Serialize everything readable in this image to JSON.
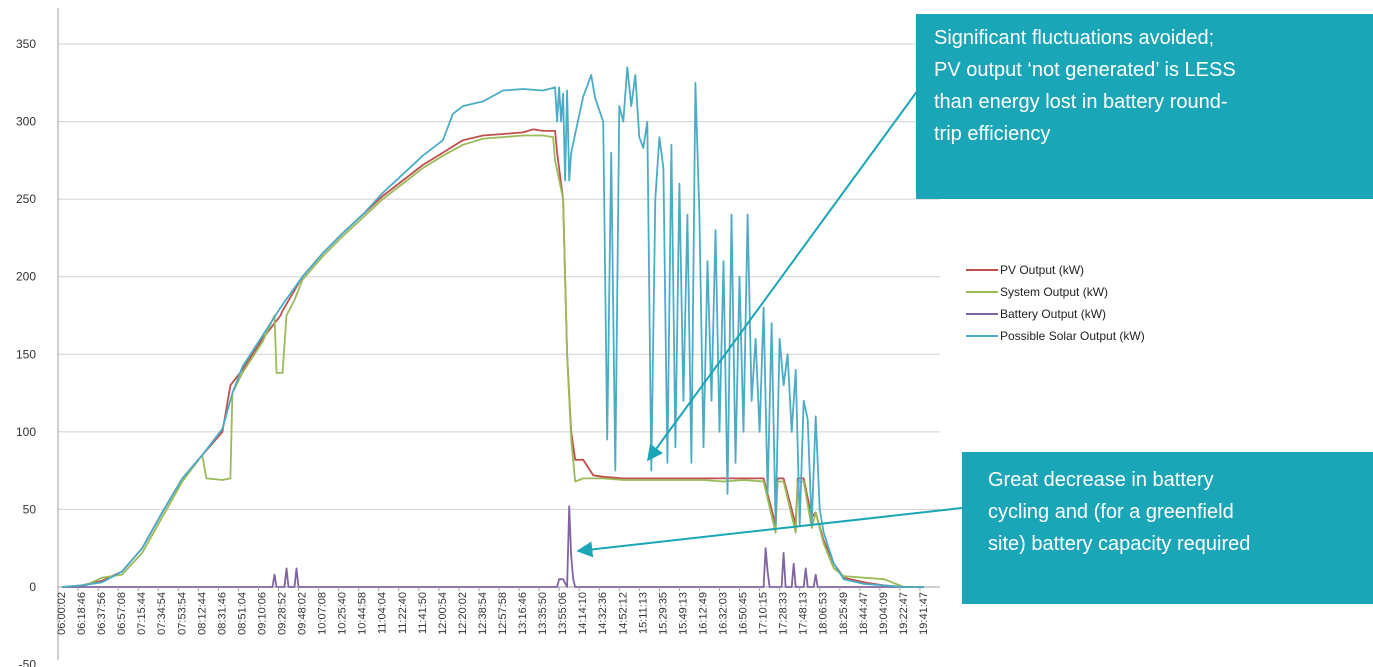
{
  "chart_data": {
    "type": "line",
    "title": "",
    "xlabel": "",
    "ylabel": "",
    "ylim": [
      -50,
      350
    ],
    "yticks": [
      -50,
      0,
      50,
      100,
      150,
      200,
      250,
      300,
      350
    ],
    "grid": true,
    "legend_position": "right",
    "x_tick_labels": [
      "06:00:02",
      "06:18:46",
      "06:37:56",
      "06:57:08",
      "07:15:44",
      "07:34:54",
      "07:53:54",
      "08:12:44",
      "08:31:46",
      "08:51:04",
      "09:10:06",
      "09:28:52",
      "09:48:02",
      "10:07:08",
      "10:25:40",
      "10:44:58",
      "11:04:04",
      "11:22:40",
      "11:41:50",
      "12:00:54",
      "12:20:02",
      "12:38:54",
      "12:57:58",
      "13:16:46",
      "13:35:50",
      "13:55:06",
      "14:14:10",
      "14:32:36",
      "14:52:12",
      "15:11:13",
      "15:29:35",
      "15:49:13",
      "16:12:49",
      "16:32:03",
      "16:50:45",
      "17:10:15",
      "17:28:33",
      "17:48:13",
      "18:06:53",
      "18:25:49",
      "18:44:47",
      "19:04:09",
      "19:22:47",
      "19:41:47"
    ],
    "series": [
      {
        "name": "PV Output (kW)",
        "color": "#c0504d",
        "points": [
          [
            0,
            0
          ],
          [
            1,
            1
          ],
          [
            2,
            4
          ],
          [
            3,
            10
          ],
          [
            4,
            25
          ],
          [
            5,
            48
          ],
          [
            6,
            70
          ],
          [
            7,
            85
          ],
          [
            8,
            100
          ],
          [
            8.4,
            130
          ],
          [
            9,
            140
          ],
          [
            10,
            160
          ],
          [
            10.9,
            175
          ],
          [
            11,
            178
          ],
          [
            12,
            200
          ],
          [
            13,
            215
          ],
          [
            14,
            228
          ],
          [
            15,
            240
          ],
          [
            16,
            252
          ],
          [
            17,
            262
          ],
          [
            18,
            272
          ],
          [
            19,
            280
          ],
          [
            20,
            288
          ],
          [
            21,
            291
          ],
          [
            22,
            292
          ],
          [
            23,
            293
          ],
          [
            23.5,
            295
          ],
          [
            24,
            294
          ],
          [
            24.6,
            294
          ],
          [
            24.7,
            280
          ],
          [
            25,
            250
          ],
          [
            25.2,
            150
          ],
          [
            25.4,
            100
          ],
          [
            25.6,
            82
          ],
          [
            26,
            82
          ],
          [
            26.5,
            72
          ],
          [
            27,
            71
          ],
          [
            28,
            70
          ],
          [
            29,
            70
          ],
          [
            30,
            70
          ],
          [
            31,
            70
          ],
          [
            32,
            70
          ],
          [
            33,
            70
          ],
          [
            34,
            70
          ],
          [
            35,
            70
          ],
          [
            35.6,
            40
          ],
          [
            35.7,
            70
          ],
          [
            36,
            70
          ],
          [
            36.6,
            40
          ],
          [
            36.7,
            70
          ],
          [
            37,
            70
          ],
          [
            37.4,
            45
          ],
          [
            37.6,
            48
          ],
          [
            38,
            30
          ],
          [
            38.5,
            15
          ],
          [
            39,
            6
          ],
          [
            40,
            3
          ],
          [
            41,
            1
          ],
          [
            42,
            0
          ],
          [
            43,
            0
          ]
        ]
      },
      {
        "name": "System Output (kW)",
        "color": "#9bbb59",
        "points": [
          [
            0,
            0
          ],
          [
            1,
            0
          ],
          [
            2,
            6
          ],
          [
            3,
            8
          ],
          [
            4,
            22
          ],
          [
            5,
            45
          ],
          [
            6,
            68
          ],
          [
            7,
            85
          ],
          [
            7.2,
            70
          ],
          [
            8,
            69
          ],
          [
            8.4,
            70
          ],
          [
            8.5,
            125
          ],
          [
            9,
            138
          ],
          [
            10,
            158
          ],
          [
            10.6,
            175
          ],
          [
            10.7,
            138
          ],
          [
            11,
            138
          ],
          [
            11.2,
            175
          ],
          [
            11.6,
            185
          ],
          [
            12,
            198
          ],
          [
            13,
            213
          ],
          [
            14,
            226
          ],
          [
            15,
            238
          ],
          [
            16,
            250
          ],
          [
            17,
            260
          ],
          [
            18,
            270
          ],
          [
            19,
            278
          ],
          [
            20,
            285
          ],
          [
            21,
            289
          ],
          [
            22,
            290
          ],
          [
            23,
            291
          ],
          [
            24,
            291
          ],
          [
            24.5,
            290
          ],
          [
            24.6,
            275
          ],
          [
            25,
            250
          ],
          [
            25.2,
            150
          ],
          [
            25.4,
            95
          ],
          [
            25.6,
            68
          ],
          [
            26,
            70
          ],
          [
            27,
            70
          ],
          [
            28,
            69
          ],
          [
            29,
            69
          ],
          [
            30,
            69
          ],
          [
            31,
            69
          ],
          [
            32,
            69
          ],
          [
            33,
            68
          ],
          [
            34,
            69
          ],
          [
            35,
            68
          ],
          [
            35.6,
            35
          ],
          [
            35.7,
            68
          ],
          [
            36,
            68
          ],
          [
            36.6,
            35
          ],
          [
            36.7,
            68
          ],
          [
            37,
            68
          ],
          [
            37.4,
            38
          ],
          [
            37.6,
            48
          ],
          [
            38,
            28
          ],
          [
            38.5,
            12
          ],
          [
            39,
            7
          ],
          [
            40,
            6
          ],
          [
            41,
            5
          ],
          [
            42,
            0
          ],
          [
            43,
            0
          ]
        ]
      },
      {
        "name": "Battery Output (kW)",
        "color": "#8064a2",
        "points": [
          [
            0,
            0
          ],
          [
            10.5,
            0
          ],
          [
            10.6,
            8
          ],
          [
            10.7,
            0
          ],
          [
            11.1,
            0
          ],
          [
            11.2,
            12
          ],
          [
            11.3,
            0
          ],
          [
            11.6,
            0
          ],
          [
            11.7,
            12
          ],
          [
            11.8,
            0
          ],
          [
            24.7,
            0
          ],
          [
            24.8,
            5
          ],
          [
            25,
            5
          ],
          [
            25.2,
            0
          ],
          [
            25.3,
            52
          ],
          [
            25.4,
            20
          ],
          [
            25.5,
            5
          ],
          [
            25.6,
            0
          ],
          [
            35,
            0
          ],
          [
            35.1,
            25
          ],
          [
            35.2,
            10
          ],
          [
            35.3,
            0
          ],
          [
            35.9,
            0
          ],
          [
            36,
            22
          ],
          [
            36.1,
            0
          ],
          [
            36.4,
            0
          ],
          [
            36.5,
            15
          ],
          [
            36.6,
            0
          ],
          [
            37,
            0
          ],
          [
            37.1,
            12
          ],
          [
            37.2,
            0
          ],
          [
            37.5,
            0
          ],
          [
            37.6,
            8
          ],
          [
            37.7,
            0
          ],
          [
            43,
            0
          ]
        ]
      },
      {
        "name": "Possible Solar Output (kW)",
        "color": "#4bacc6",
        "points": [
          [
            0,
            0
          ],
          [
            1,
            1
          ],
          [
            2,
            3
          ],
          [
            3,
            10
          ],
          [
            4,
            25
          ],
          [
            5,
            48
          ],
          [
            6,
            70
          ],
          [
            7,
            85
          ],
          [
            8,
            102
          ],
          [
            8.5,
            125
          ],
          [
            9,
            142
          ],
          [
            10,
            162
          ],
          [
            10.8,
            178
          ],
          [
            11,
            182
          ],
          [
            12,
            200
          ],
          [
            13,
            215
          ],
          [
            14,
            228
          ],
          [
            15,
            240
          ],
          [
            16,
            254
          ],
          [
            17,
            266
          ],
          [
            18,
            278
          ],
          [
            19,
            288
          ],
          [
            19.5,
            305
          ],
          [
            20,
            310
          ],
          [
            21,
            313
          ],
          [
            22,
            320
          ],
          [
            23,
            321
          ],
          [
            24,
            320
          ],
          [
            24.6,
            322
          ],
          [
            24.7,
            300
          ],
          [
            24.8,
            322
          ],
          [
            24.9,
            300
          ],
          [
            25,
            318
          ],
          [
            25.1,
            262
          ],
          [
            25.2,
            320
          ],
          [
            25.3,
            262
          ],
          [
            25.4,
            280
          ],
          [
            26,
            316
          ],
          [
            26.4,
            330
          ],
          [
            26.6,
            315
          ],
          [
            27,
            300
          ],
          [
            27.2,
            95
          ],
          [
            27.4,
            280
          ],
          [
            27.6,
            75
          ],
          [
            27.8,
            310
          ],
          [
            28,
            300
          ],
          [
            28.2,
            335
          ],
          [
            28.4,
            310
          ],
          [
            28.6,
            330
          ],
          [
            28.8,
            290
          ],
          [
            29,
            283
          ],
          [
            29.2,
            300
          ],
          [
            29.4,
            75
          ],
          [
            29.6,
            250
          ],
          [
            29.8,
            290
          ],
          [
            30,
            270
          ],
          [
            30.2,
            80
          ],
          [
            30.4,
            285
          ],
          [
            30.6,
            90
          ],
          [
            30.8,
            260
          ],
          [
            31,
            120
          ],
          [
            31.2,
            240
          ],
          [
            31.4,
            80
          ],
          [
            31.6,
            325
          ],
          [
            31.8,
            240
          ],
          [
            32,
            90
          ],
          [
            32.2,
            210
          ],
          [
            32.4,
            120
          ],
          [
            32.6,
            230
          ],
          [
            32.8,
            100
          ],
          [
            33,
            210
          ],
          [
            33.2,
            60
          ],
          [
            33.4,
            240
          ],
          [
            33.6,
            80
          ],
          [
            33.8,
            200
          ],
          [
            34,
            100
          ],
          [
            34.2,
            240
          ],
          [
            34.4,
            120
          ],
          [
            34.6,
            160
          ],
          [
            34.8,
            100
          ],
          [
            35,
            180
          ],
          [
            35.2,
            60
          ],
          [
            35.4,
            170
          ],
          [
            35.6,
            40
          ],
          [
            35.8,
            160
          ],
          [
            36,
            130
          ],
          [
            36.2,
            150
          ],
          [
            36.4,
            100
          ],
          [
            36.6,
            140
          ],
          [
            36.8,
            40
          ],
          [
            37,
            120
          ],
          [
            37.2,
            108
          ],
          [
            37.4,
            40
          ],
          [
            37.6,
            110
          ],
          [
            37.8,
            50
          ],
          [
            38,
            35
          ],
          [
            38.5,
            15
          ],
          [
            39,
            5
          ],
          [
            40,
            2
          ],
          [
            41,
            1
          ],
          [
            42,
            0
          ],
          [
            43,
            0
          ]
        ]
      }
    ]
  },
  "annotations": {
    "top_callout": {
      "lines": [
        "Significant fluctuations avoided;",
        "PV output ‘not generated’ is LESS",
        "than energy lost in battery round-",
        "trip efficiency"
      ],
      "color": "#1aa6b7"
    },
    "bottom_callout": {
      "lines": [
        "Great decrease in battery",
        "cycling and (for a greenfield",
        "site) battery capacity required"
      ],
      "color": "#1aa6b7"
    }
  }
}
